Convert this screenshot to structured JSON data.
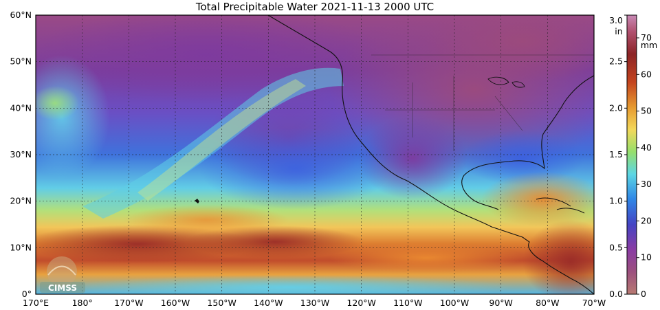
{
  "title": "Total Precipitable Water  2021-11-13 2000 UTC",
  "latitude_labels": [
    "60°N",
    "50°N",
    "40°N",
    "30°N",
    "20°N",
    "10°N",
    "0°"
  ],
  "longitude_labels": [
    "170°E",
    "180°",
    "170°W",
    "160°W",
    "150°W",
    "140°W",
    "130°W",
    "120°W",
    "110°W",
    "100°W",
    "90°W",
    "80°W",
    "70°W"
  ],
  "colorbar": {
    "inches_unit": "in",
    "inches_ticks": [
      "3.0",
      "2.5",
      "2.0",
      "1.5",
      "1.0",
      "0.5",
      "0.0"
    ],
    "mm_unit": "mm",
    "mm_ticks": [
      "70",
      "60",
      "50",
      "40",
      "30",
      "20",
      "10",
      "0"
    ]
  },
  "logo_text": "CIMSS",
  "colors": {
    "dry": "#b46a6a",
    "magenta": "#8a3c8e",
    "purple": "#7c3fa8",
    "blue": "#3a6ee0",
    "cyan": "#55c8e8",
    "green": "#8edc84",
    "yellow": "#f0d060",
    "orange": "#e08a30",
    "red": "#a8322e"
  }
}
